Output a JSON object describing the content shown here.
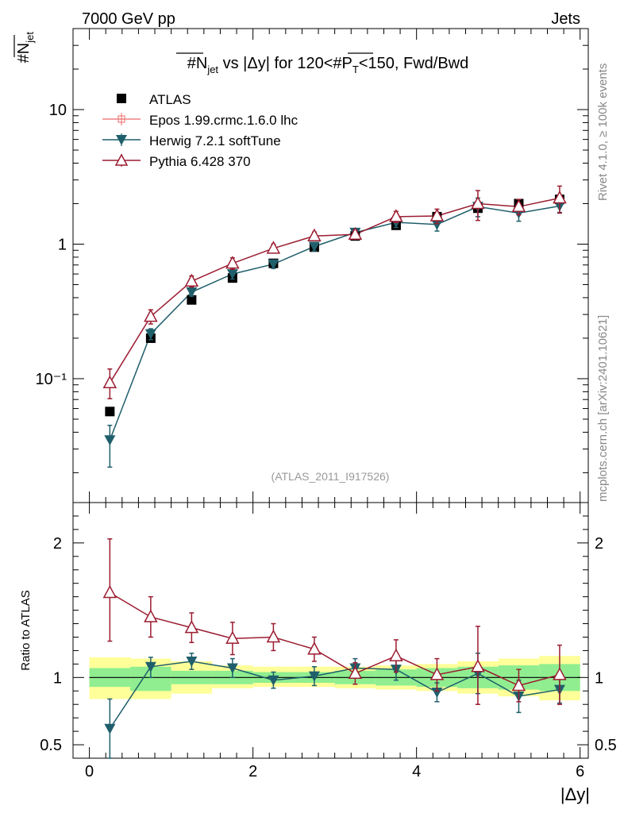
{
  "header": {
    "left": "7000 GeV pp",
    "right": "Jets"
  },
  "side_labels": {
    "rivet": "Rivet 4.1.0, ≥ 100k events",
    "mcplots": "mcplots.cern.ch [arXiv:2401.10621]"
  },
  "chart_data": [
    {
      "type": "scatter",
      "title_parts": {
        "a": "#N",
        "a_sub": "jet",
        "b": " vs |Δy| for 120<#P",
        "b_sub": "T",
        "c": "<150, Fwd/Bwd"
      },
      "analysis_tag": "(ATLAS_2011_I917526)",
      "ylabel": "#N",
      "ylabel_sub": "jet",
      "yscale": "log",
      "ylim": [
        0.012,
        40
      ],
      "xlim": [
        -0.2,
        6.1
      ],
      "yticks": [
        {
          "value": 0.1,
          "label": "10⁻¹"
        },
        {
          "value": 1,
          "label": "1"
        },
        {
          "value": 10,
          "label": "10"
        }
      ],
      "x": [
        0.25,
        0.75,
        1.25,
        1.75,
        2.25,
        2.75,
        3.25,
        3.75,
        4.25,
        4.75,
        5.25,
        5.75
      ],
      "legend": [
        {
          "name": "ATLAS",
          "marker": "square",
          "color": "#000000"
        },
        {
          "name": "Epos 1.99.crmc.1.6.0 lhc",
          "marker": "open-cross",
          "color": "#f08080"
        },
        {
          "name": "Herwig 7.2.1 softTune",
          "marker": "triangle-down",
          "color": "#1f5f6b"
        },
        {
          "name": "Pythia 6.428 370",
          "marker": "open-triangle",
          "color": "#9b1c31"
        }
      ],
      "series": [
        {
          "name": "ATLAS",
          "values": [
            0.057,
            0.2,
            0.385,
            0.56,
            0.72,
            0.95,
            1.15,
            1.38,
            1.6,
            1.85,
            2.0,
            2.15
          ],
          "err": [
            0.003,
            0.01,
            0.02,
            0.03,
            0.04,
            0.05,
            0.06,
            0.07,
            0.08,
            0.09,
            0.1,
            0.1
          ]
        },
        {
          "name": "Herwig 7.2.1 softTune",
          "values": [
            0.035,
            0.215,
            0.44,
            0.6,
            0.71,
            0.96,
            1.22,
            1.45,
            1.4,
            1.9,
            1.7,
            1.92
          ],
          "err_low": [
            0.013,
            0.02,
            0.03,
            0.05,
            0.05,
            0.07,
            0.08,
            0.12,
            0.15,
            0.3,
            0.22,
            0.2
          ],
          "err_high": [
            0.01,
            0.02,
            0.03,
            0.05,
            0.05,
            0.07,
            0.08,
            0.12,
            0.15,
            0.3,
            0.22,
            0.2
          ]
        },
        {
          "name": "Pythia 6.428 370",
          "values": [
            0.093,
            0.29,
            0.53,
            0.72,
            0.93,
            1.15,
            1.18,
            1.6,
            1.62,
            2.0,
            1.9,
            2.2
          ],
          "err_low": [
            0.022,
            0.035,
            0.05,
            0.07,
            0.07,
            0.08,
            0.09,
            0.15,
            0.2,
            0.5,
            0.25,
            0.5
          ],
          "err_high": [
            0.025,
            0.035,
            0.05,
            0.07,
            0.07,
            0.08,
            0.09,
            0.15,
            0.2,
            0.5,
            0.25,
            0.5
          ]
        }
      ]
    },
    {
      "type": "scatter",
      "ylabel": "Ratio to ATLAS",
      "xlabel": "|Δy|",
      "ylim": [
        0.4,
        2.3
      ],
      "xlim": [
        -0.2,
        6.1
      ],
      "xticks": [
        0,
        2,
        4,
        6
      ],
      "yticks": [
        0.5,
        1,
        2
      ],
      "reference_line": 1,
      "bin_edges": [
        0,
        0.5,
        1,
        1.5,
        2,
        2.5,
        3,
        3.5,
        4,
        4.5,
        5,
        5.5,
        6
      ],
      "band_inner": [
        [
          0.93,
          1.07
        ],
        [
          0.9,
          1.08
        ],
        [
          0.95,
          1.05
        ],
        [
          0.95,
          1.05
        ],
        [
          0.96,
          1.04
        ],
        [
          0.96,
          1.04
        ],
        [
          0.95,
          1.05
        ],
        [
          0.94,
          1.06
        ],
        [
          0.93,
          1.07
        ],
        [
          0.92,
          1.08
        ],
        [
          0.91,
          1.09
        ],
        [
          0.9,
          1.1
        ]
      ],
      "band_outer": [
        [
          0.84,
          1.15
        ],
        [
          0.84,
          1.14
        ],
        [
          0.88,
          1.12
        ],
        [
          0.92,
          1.09
        ],
        [
          0.93,
          1.08
        ],
        [
          0.93,
          1.08
        ],
        [
          0.92,
          1.08
        ],
        [
          0.91,
          1.09
        ],
        [
          0.9,
          1.1
        ],
        [
          0.88,
          1.12
        ],
        [
          0.86,
          1.14
        ],
        [
          0.83,
          1.16
        ]
      ],
      "x": [
        0.25,
        0.75,
        1.25,
        1.75,
        2.25,
        2.75,
        3.25,
        3.75,
        4.25,
        4.75,
        5.25,
        5.75
      ],
      "series": [
        {
          "name": "Herwig 7.2.1 softTune",
          "values": [
            0.62,
            1.08,
            1.12,
            1.07,
            0.98,
            1.01,
            1.07,
            1.06,
            0.89,
            1.03,
            0.86,
            0.91
          ],
          "err_low": [
            0.24,
            0.08,
            0.06,
            0.07,
            0.06,
            0.07,
            0.07,
            0.08,
            0.07,
            0.15,
            0.12,
            0.1
          ],
          "err_high": [
            0.22,
            0.07,
            0.06,
            0.07,
            0.06,
            0.07,
            0.07,
            0.08,
            0.07,
            0.15,
            0.12,
            0.1
          ]
        },
        {
          "name": "Pythia 6.428 370",
          "values": [
            1.63,
            1.45,
            1.37,
            1.29,
            1.3,
            1.21,
            1.03,
            1.16,
            1.02,
            1.08,
            0.94,
            1.02
          ],
          "err_low": [
            0.36,
            0.15,
            0.11,
            0.12,
            0.1,
            0.09,
            0.08,
            0.12,
            0.12,
            0.28,
            0.12,
            0.22
          ],
          "err_high": [
            0.4,
            0.15,
            0.11,
            0.12,
            0.1,
            0.09,
            0.08,
            0.12,
            0.12,
            0.3,
            0.12,
            0.22
          ]
        }
      ]
    }
  ]
}
